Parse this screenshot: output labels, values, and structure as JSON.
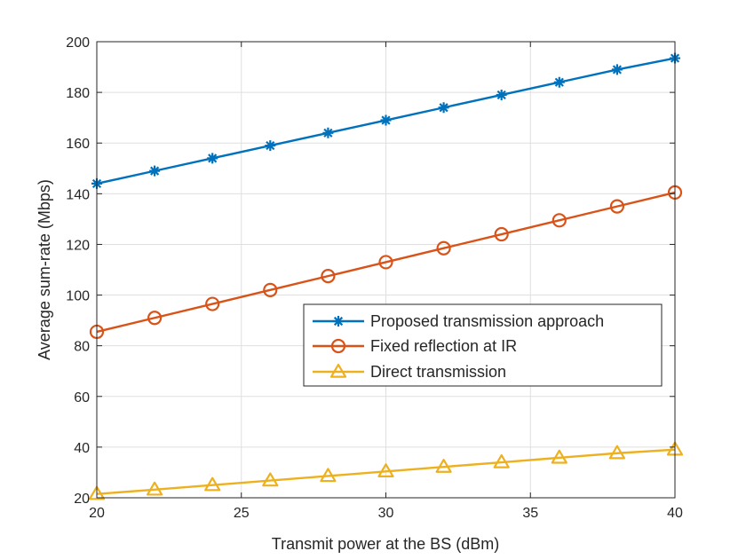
{
  "chart_data": {
    "type": "line",
    "title": "",
    "xlabel": "Transmit power at the BS (dBm)",
    "ylabel": "Average sum-rate (Mbps)",
    "xlim": [
      20,
      40
    ],
    "ylim": [
      20,
      200
    ],
    "xticks": [
      20,
      25,
      30,
      35,
      40
    ],
    "yticks": [
      20,
      40,
      60,
      80,
      100,
      120,
      140,
      160,
      180,
      200
    ],
    "grid": true,
    "legend_position": "center-right",
    "x": [
      20,
      22,
      24,
      26,
      28,
      30,
      32,
      34,
      36,
      38,
      40
    ],
    "series": [
      {
        "name": "Proposed transmission approach",
        "color": "#0072BD",
        "marker": "asterisk",
        "values": [
          144,
          149,
          154,
          159,
          164,
          169,
          174,
          179,
          184,
          189,
          193.5
        ]
      },
      {
        "name": "Fixed reflection at IR",
        "color": "#D95319",
        "marker": "circle",
        "values": [
          85.5,
          91,
          96.5,
          102,
          107.5,
          113,
          118.5,
          124,
          129.5,
          135,
          140.5
        ]
      },
      {
        "name": "Direct transmission",
        "color": "#EDB120",
        "marker": "triangle",
        "values": [
          21.5,
          23.2,
          25,
          26.8,
          28.6,
          30.4,
          32.2,
          34,
          35.8,
          37.6,
          39
        ]
      }
    ]
  }
}
